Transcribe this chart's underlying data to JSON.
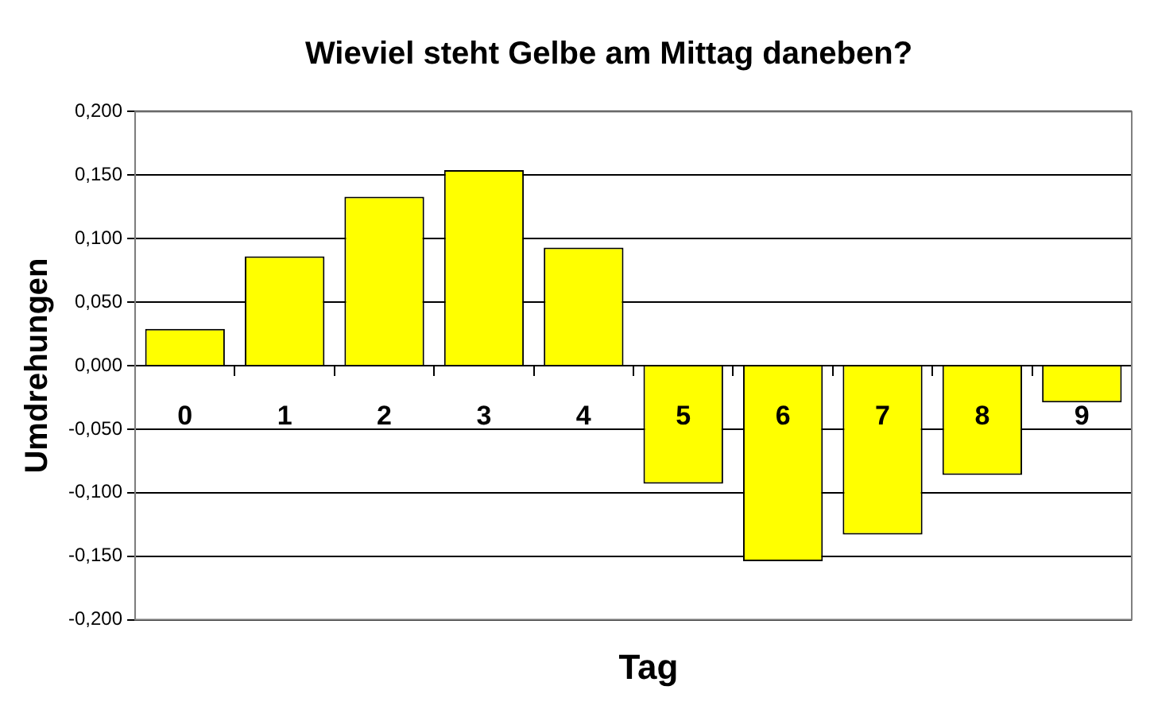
{
  "chart_data": {
    "type": "bar",
    "title": "Wieviel steht Gelbe am Mittag daneben?",
    "xlabel": "Tag",
    "ylabel": "Umdrehungen",
    "categories": [
      "0",
      "1",
      "2",
      "3",
      "4",
      "5",
      "6",
      "7",
      "8",
      "9"
    ],
    "values": [
      0.029,
      0.086,
      0.133,
      0.154,
      0.093,
      -0.093,
      -0.154,
      -0.133,
      -0.086,
      -0.029
    ],
    "color": "#ffff00",
    "ylim": [
      -0.2,
      0.2
    ],
    "yticks": [
      {
        "value": -0.2,
        "label": "-0,200"
      },
      {
        "value": -0.15,
        "label": "-0,150"
      },
      {
        "value": -0.1,
        "label": "-0,100"
      },
      {
        "value": -0.05,
        "label": "-0,050"
      },
      {
        "value": 0,
        "label": "0,000"
      },
      {
        "value": 0.05,
        "label": "0,050"
      },
      {
        "value": 0.1,
        "label": "0,100"
      },
      {
        "value": 0.15,
        "label": "0,150"
      },
      {
        "value": 0.2,
        "label": "0,200"
      }
    ],
    "grid": "y",
    "legend": false
  }
}
